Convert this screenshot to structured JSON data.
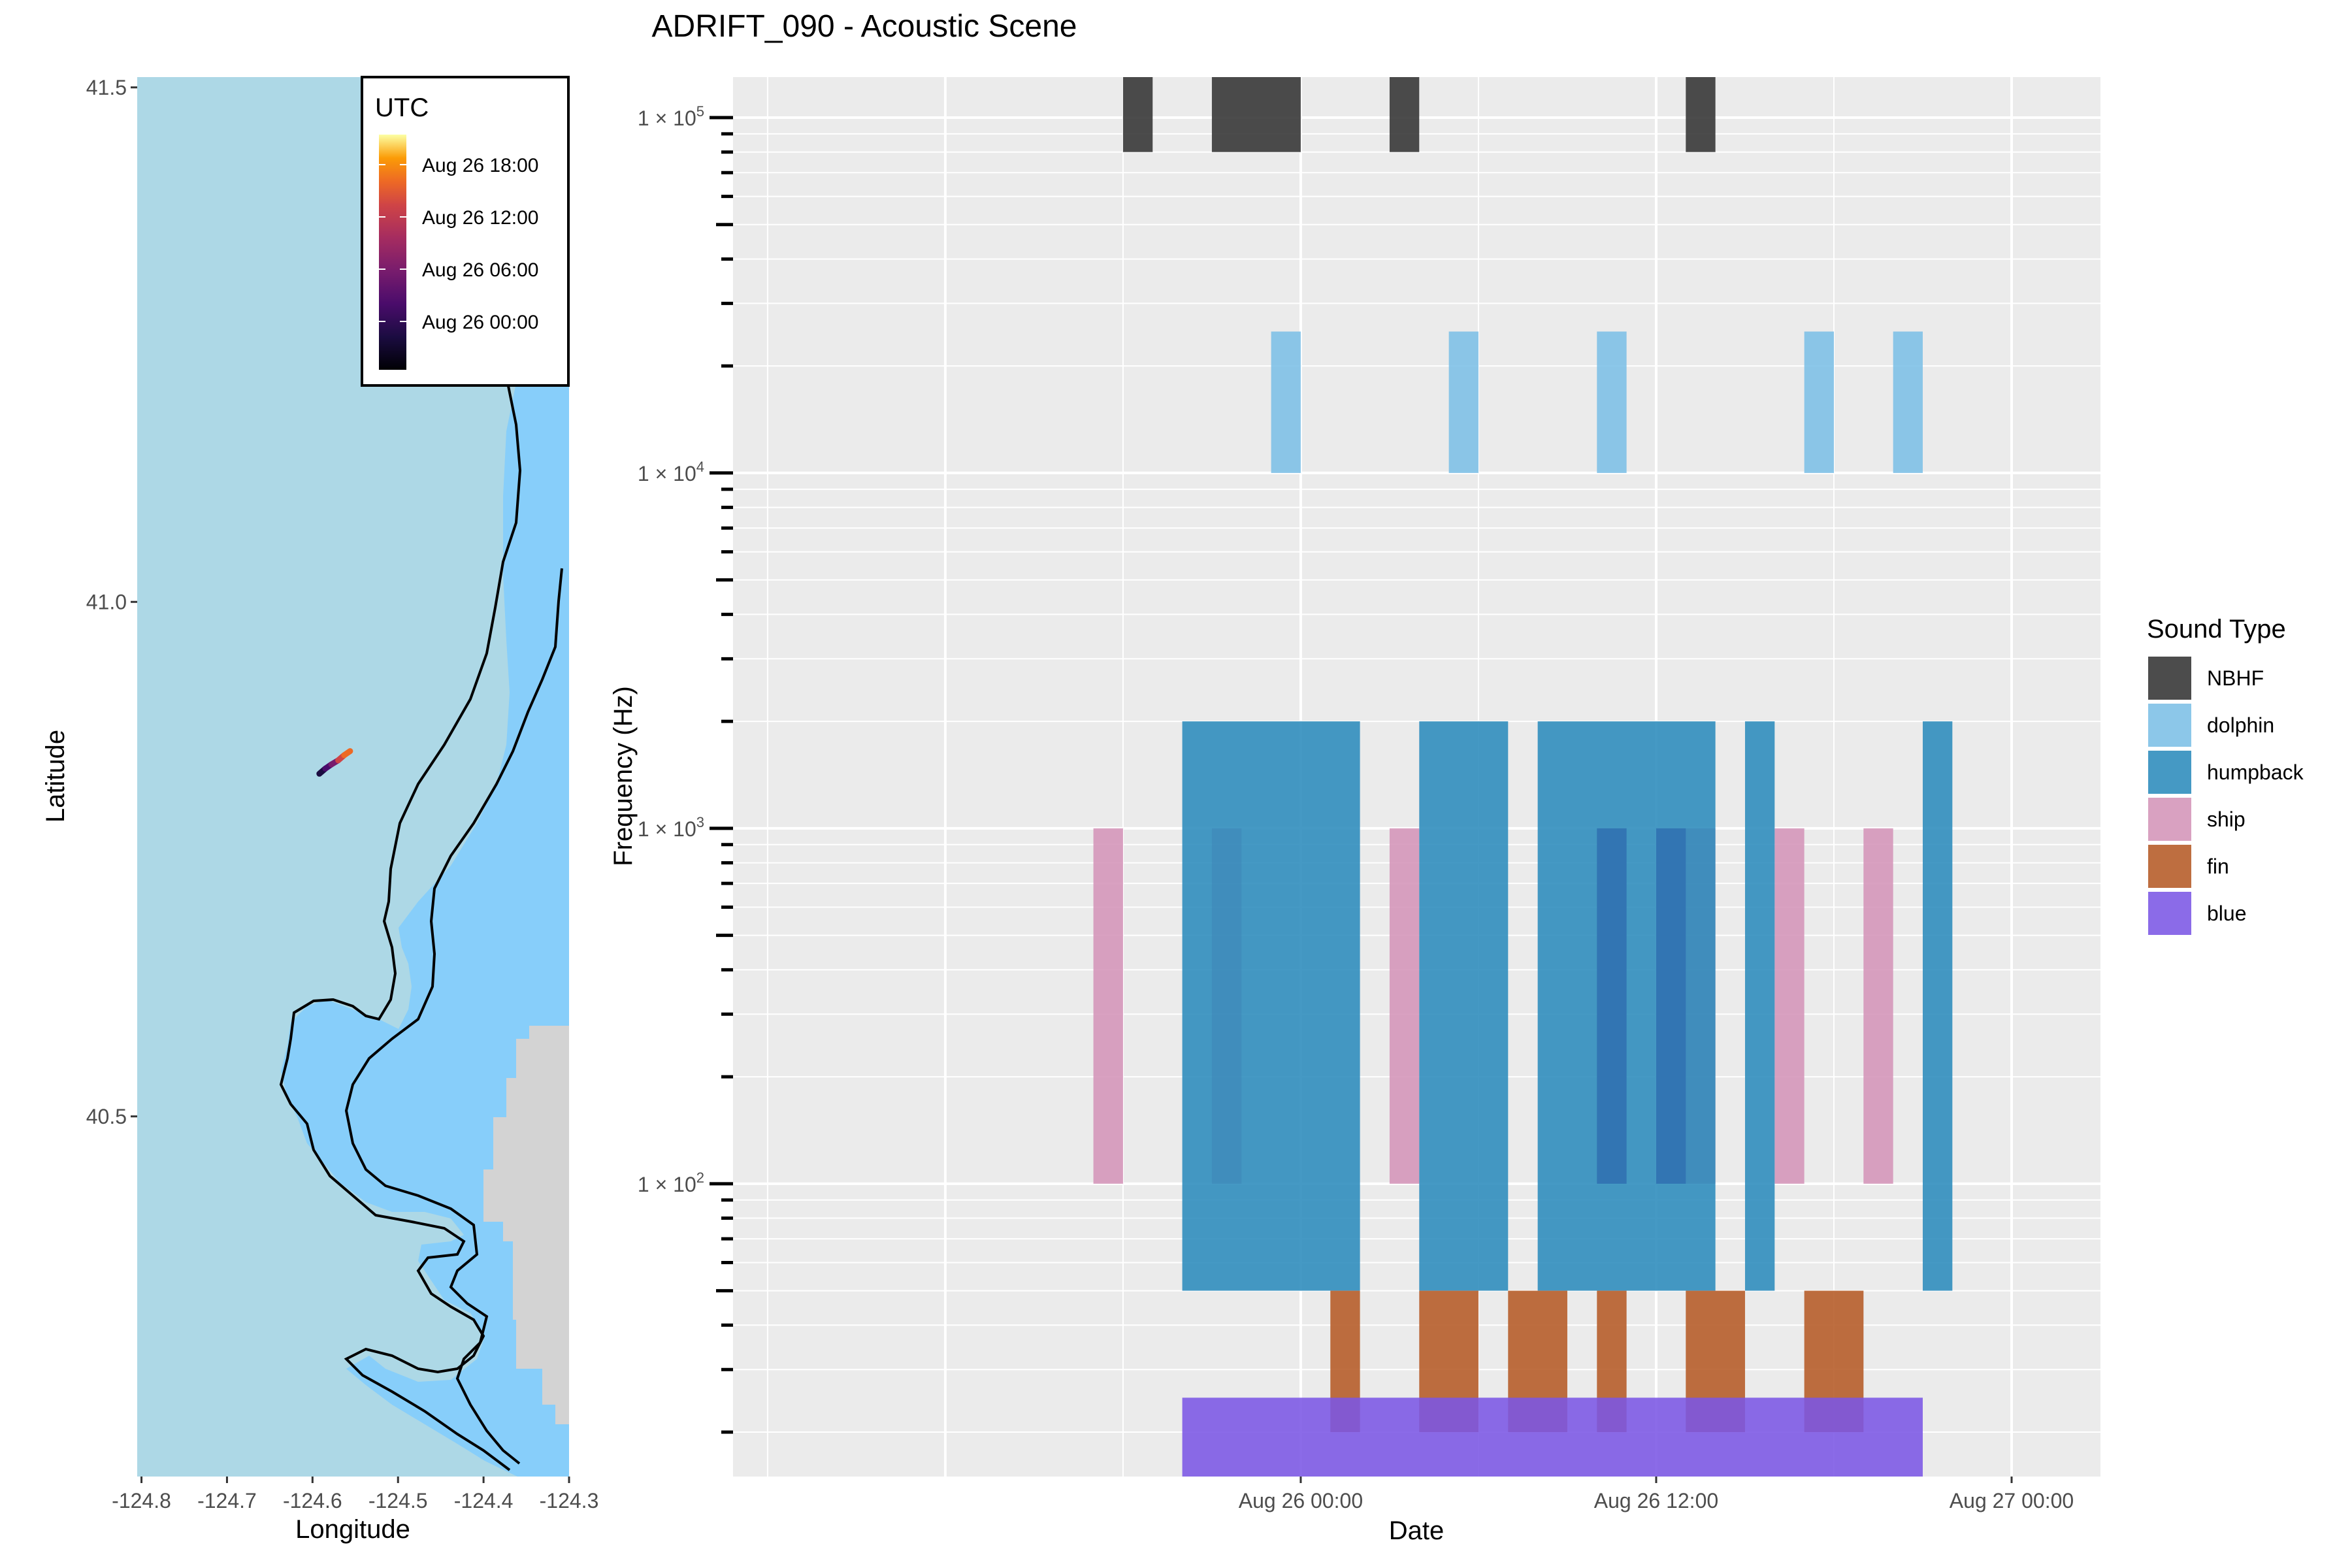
{
  "title": "ADRIFT_090 - Acoustic Scene",
  "map_panel": {
    "xlabel": "Longitude",
    "ylabel": "Latitude",
    "x_ticks": [
      "-124.8",
      "-124.7",
      "-124.6",
      "-124.5",
      "-124.4",
      "-124.3"
    ],
    "x_tick_values": [
      -124.8,
      -124.7,
      -124.6,
      -124.5,
      -124.4,
      -124.3
    ],
    "y_ticks": [
      "41.5",
      "41.0",
      "40.5"
    ],
    "y_tick_values": [
      41.5,
      41.0,
      40.5
    ],
    "xlim": [
      -124.805,
      -124.3
    ],
    "ylim": [
      40.15,
      41.51
    ],
    "colors": {
      "ocean": "#add8e6",
      "shelf": "#87cefa",
      "land": "#d3d3d3",
      "coast_line": "#000000"
    },
    "legend": {
      "title": "UTC",
      "labels": [
        "Aug 26 18:00",
        "Aug 26 12:00",
        "Aug 26 06:00",
        "Aug 26 00:00"
      ],
      "colormap": "inferno"
    },
    "track": {
      "lon": [
        -124.592,
        -124.585,
        -124.578,
        -124.57,
        -124.563,
        -124.556
      ],
      "lat": [
        40.833,
        40.838,
        40.842,
        40.846,
        40.851,
        40.855
      ]
    }
  },
  "legend": {
    "title": "Sound Type",
    "items": [
      {
        "label": "NBHF",
        "color": "#333333"
      },
      {
        "label": "dolphin",
        "color": "#7cbfe6"
      },
      {
        "label": "humpback",
        "color": "#2b8bbc"
      },
      {
        "label": "ship",
        "color": "#d494b8"
      },
      {
        "label": "fin",
        "color": "#b55a26"
      },
      {
        "label": "blue",
        "color": "#7b57e5"
      }
    ]
  },
  "chart_data": {
    "type": "timeline",
    "xlabel": "Date",
    "ylabel": "Frequency (Hz)",
    "y_scale": "log10",
    "ylim_hz": [
      15,
      130000
    ],
    "xlim": [
      "2022-08-25 04:50",
      "2022-08-27 03:00"
    ],
    "x_ticks": [
      {
        "label": "Aug 26 00:00",
        "value": "2022-08-26 00:00"
      },
      {
        "label": "Aug 26 12:00",
        "value": "2022-08-26 12:00"
      },
      {
        "label": "Aug 27 00:00",
        "value": "2022-08-27 00:00"
      }
    ],
    "y_tick_labels": [
      {
        "mantissa": "1",
        "exponent": "5",
        "value": 100000
      },
      {
        "mantissa": "1",
        "exponent": "4",
        "value": 10000
      },
      {
        "mantissa": "1",
        "exponent": "3",
        "value": 1000
      },
      {
        "mantissa": "1",
        "exponent": "2",
        "value": 100
      }
    ],
    "series": [
      {
        "name": "NBHF",
        "freq_range_hz": [
          80000,
          130000
        ],
        "intervals": [
          [
            "2022-08-25 18:00",
            "2022-08-25 19:00"
          ],
          [
            "2022-08-25 21:00",
            "2022-08-26 00:00"
          ],
          [
            "2022-08-26 03:00",
            "2022-08-26 04:00"
          ],
          [
            "2022-08-26 13:00",
            "2022-08-26 14:00"
          ]
        ]
      },
      {
        "name": "dolphin",
        "freq_range_hz": [
          10000,
          25000
        ],
        "intervals": [
          [
            "2022-08-25 23:00",
            "2022-08-26 00:00"
          ],
          [
            "2022-08-26 05:00",
            "2022-08-26 06:00"
          ],
          [
            "2022-08-26 10:00",
            "2022-08-26 11:00"
          ],
          [
            "2022-08-26 17:00",
            "2022-08-26 18:00"
          ],
          [
            "2022-08-26 20:00",
            "2022-08-26 21:00"
          ]
        ]
      },
      {
        "name": "ship",
        "freq_range_hz": [
          100,
          1000
        ],
        "intervals": [
          [
            "2022-08-25 17:00",
            "2022-08-25 18:00"
          ],
          [
            "2022-08-25 21:00",
            "2022-08-25 22:00"
          ],
          [
            "2022-08-26 03:00",
            "2022-08-26 04:00"
          ],
          [
            "2022-08-26 13:00",
            "2022-08-26 14:00"
          ],
          [
            "2022-08-26 16:00",
            "2022-08-26 17:00"
          ],
          [
            "2022-08-26 19:00",
            "2022-08-26 20:00"
          ]
        ]
      },
      {
        "name": "humpback",
        "freq_range_hz": [
          50,
          2000
        ],
        "intervals": [
          [
            "2022-08-25 20:00",
            "2022-08-26 02:00"
          ],
          [
            "2022-08-26 04:00",
            "2022-08-26 07:00"
          ],
          [
            "2022-08-26 08:00",
            "2022-08-26 14:00"
          ],
          [
            "2022-08-26 15:00",
            "2022-08-26 16:00"
          ],
          [
            "2022-08-26 21:00",
            "2022-08-26 22:00"
          ]
        ],
        "overlay_intervals": [
          [
            "2022-08-26 10:00",
            "2022-08-26 11:00"
          ],
          [
            "2022-08-26 12:00",
            "2022-08-26 13:00"
          ]
        ],
        "overlay_freq_range_hz": [
          100,
          1000
        ]
      },
      {
        "name": "fin",
        "freq_range_hz": [
          20,
          50
        ],
        "intervals": [
          [
            "2022-08-26 01:00",
            "2022-08-26 02:00"
          ],
          [
            "2022-08-26 04:00",
            "2022-08-26 06:00"
          ],
          [
            "2022-08-26 07:00",
            "2022-08-26 09:00"
          ],
          [
            "2022-08-26 10:00",
            "2022-08-26 11:00"
          ],
          [
            "2022-08-26 13:00",
            "2022-08-26 15:00"
          ],
          [
            "2022-08-26 17:00",
            "2022-08-26 19:00"
          ]
        ]
      },
      {
        "name": "blue",
        "freq_range_hz": [
          15,
          25
        ],
        "intervals": [
          [
            "2022-08-25 20:00",
            "2022-08-26 21:00"
          ]
        ]
      }
    ]
  }
}
